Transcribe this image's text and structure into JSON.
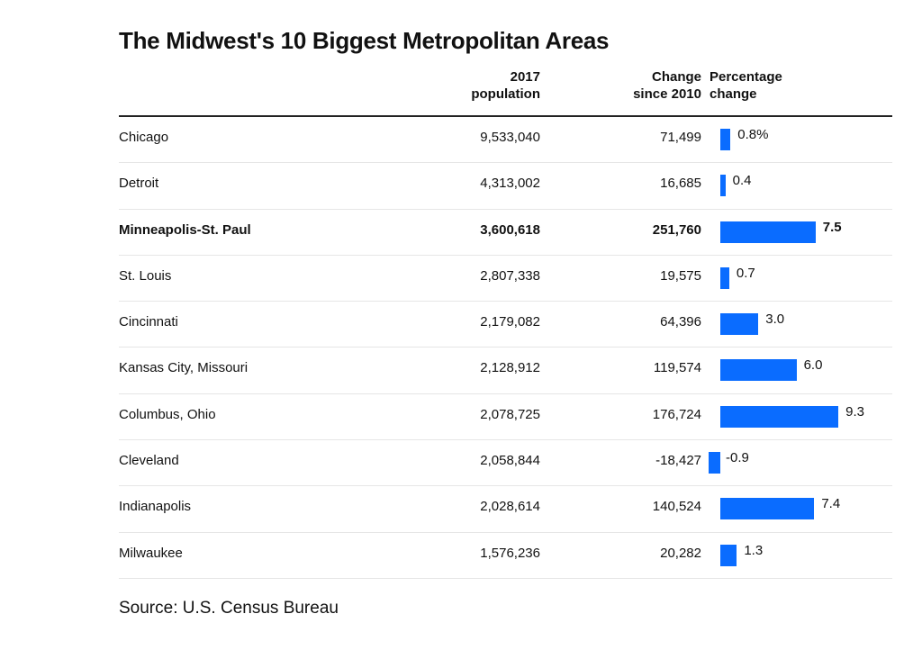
{
  "chart_data": {
    "type": "table",
    "title": "The Midwest's 10 Biggest Metropolitan Areas",
    "columns": [
      "",
      "2017 population",
      "Change since 2010",
      "Percentage change"
    ],
    "column_headers": {
      "population": [
        "2017",
        "population"
      ],
      "change": [
        "Change",
        "since 2010"
      ],
      "percent": [
        "Percentage",
        "change"
      ]
    },
    "bar_color": "#0a6cff",
    "highlight_row": "Minneapolis-St. Paul",
    "rows": [
      {
        "name": "Chicago",
        "population": "9,533,040",
        "change": "71,499",
        "pct": 0.8,
        "pct_label": "0.8%",
        "bold": false
      },
      {
        "name": "Detroit",
        "population": "4,313,002",
        "change": "16,685",
        "pct": 0.4,
        "pct_label": "0.4",
        "bold": false
      },
      {
        "name": "Minneapolis-St. Paul",
        "population": "3,600,618",
        "change": "251,760",
        "pct": 7.5,
        "pct_label": "7.5",
        "bold": true
      },
      {
        "name": "St. Louis",
        "population": "2,807,338",
        "change": "19,575",
        "pct": 0.7,
        "pct_label": "0.7",
        "bold": false
      },
      {
        "name": "Cincinnati",
        "population": "2,179,082",
        "change": "64,396",
        "pct": 3.0,
        "pct_label": "3.0",
        "bold": false
      },
      {
        "name": "Kansas City, Missouri",
        "population": "2,128,912",
        "change": "119,574",
        "pct": 6.0,
        "pct_label": "6.0",
        "bold": false
      },
      {
        "name": "Columbus, Ohio",
        "population": "2,078,725",
        "change": "176,724",
        "pct": 9.3,
        "pct_label": "9.3",
        "bold": false
      },
      {
        "name": "Cleveland",
        "population": "2,058,844",
        "change": "-18,427",
        "pct": -0.9,
        "pct_label": "-0.9",
        "bold": false
      },
      {
        "name": "Indianapolis",
        "population": "2,028,614",
        "change": "140,524",
        "pct": 7.4,
        "pct_label": "7.4",
        "bold": false
      },
      {
        "name": "Milwaukee",
        "population": "1,576,236",
        "change": "20,282",
        "pct": 1.3,
        "pct_label": "1.3",
        "bold": false
      }
    ],
    "source": "Source: U.S. Census Bureau"
  }
}
